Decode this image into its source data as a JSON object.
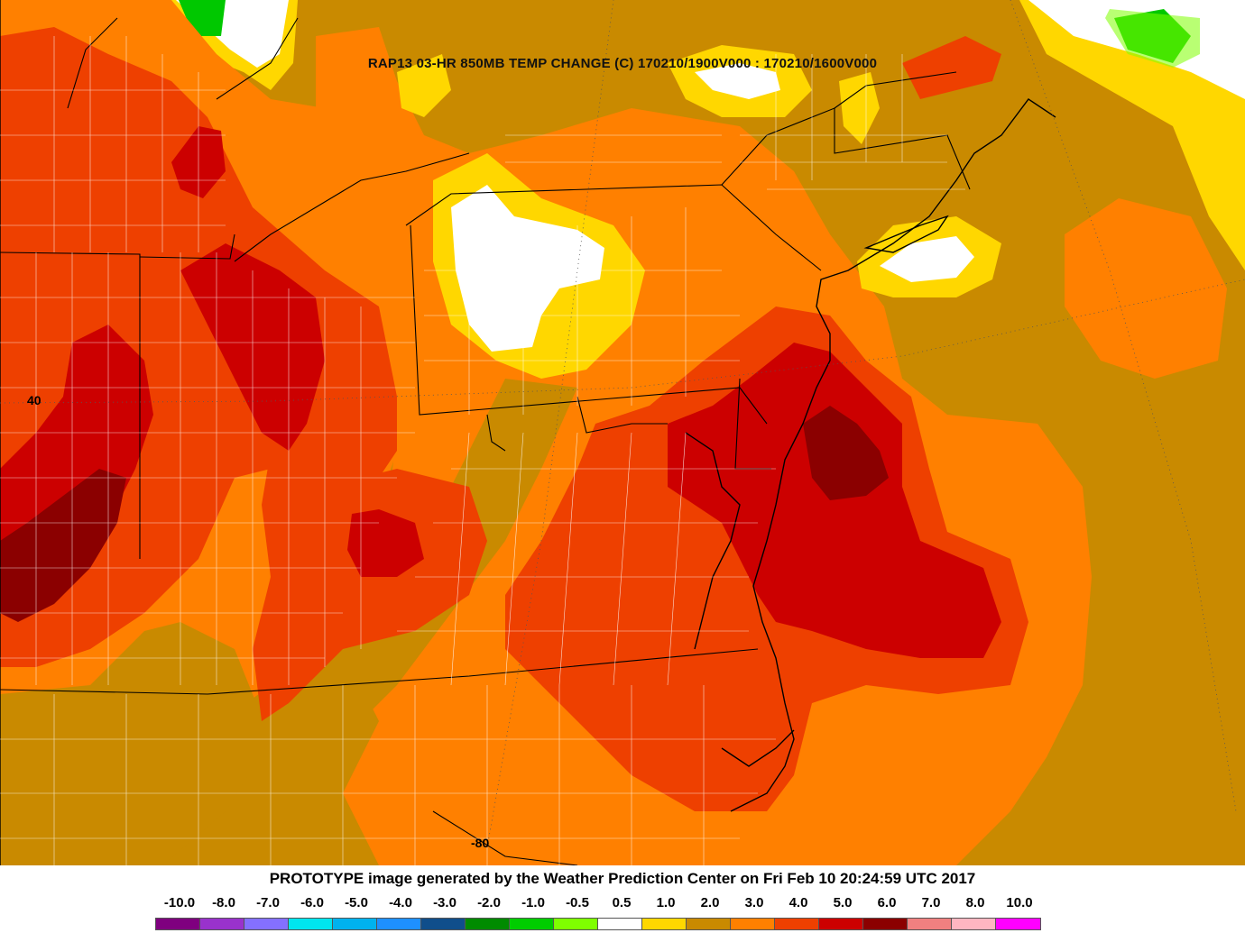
{
  "map": {
    "title": "RAP13 03-HR 850MB TEMP CHANGE (C) 170210/1900V000 : 170210/1600V000",
    "lat_label": "40",
    "lon_label": "-80",
    "colors": {
      "background": "#c98a00",
      "pale": "#ffd700",
      "orange": "#ff8000",
      "red_orange": "#ee4000",
      "red": "#cc0000",
      "dark_red": "#8b0000",
      "white": "#ffffff",
      "green": "#00c800",
      "light_green": "#80ff00"
    }
  },
  "footer": {
    "credit": "PROTOTYPE image generated by the Weather Prediction Center on Fri Feb 10 20:24:59 UTC 2017"
  },
  "legend": {
    "labels": [
      "-10.0",
      "-8.0",
      "-7.0",
      "-6.0",
      "-5.0",
      "-4.0",
      "-3.0",
      "-2.0",
      "-1.0",
      "-0.5",
      "0.5",
      "1.0",
      "2.0",
      "3.0",
      "4.0",
      "5.0",
      "6.0",
      "7.0",
      "8.0",
      "10.0"
    ],
    "colors": [
      "#7f007f",
      "#9932cc",
      "#8470ff",
      "#00e5ee",
      "#00b2ee",
      "#1e90ff",
      "#104e8b",
      "#008b00",
      "#00cd00",
      "#7fff00",
      "#ffffff",
      "#ffd700",
      "#c98a00",
      "#ff8000",
      "#ee4000",
      "#cc0000",
      "#8b0000",
      "#f08080",
      "#ffb6c1",
      "#ff00ff"
    ]
  }
}
